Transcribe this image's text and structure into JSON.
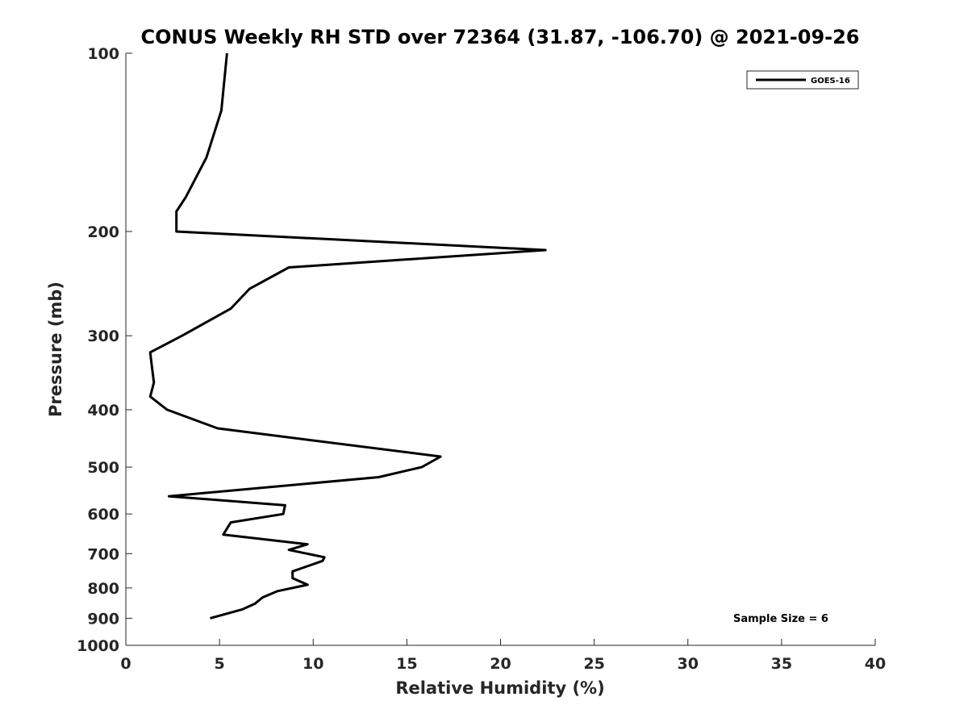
{
  "chart_data": {
    "type": "line",
    "title": "CONUS Weekly RH STD over 72364 (31.87, -106.70) @ 2021-09-26",
    "xlabel": "Relative Humidity (%)",
    "ylabel": "Pressure (mb)",
    "xlim": [
      0,
      40
    ],
    "ylim": [
      100,
      1000
    ],
    "y_scale": "log",
    "y_direction": "reversed",
    "x_ticks": [
      "0",
      "5",
      "10",
      "15",
      "20",
      "25",
      "30",
      "35",
      "40"
    ],
    "y_ticks": [
      "100",
      "200",
      "300",
      "400",
      "500",
      "600",
      "700",
      "800",
      "900",
      "1000"
    ],
    "grid": false,
    "legend_position": "top-right",
    "series": [
      {
        "name": "GOES-16",
        "color": "#000000",
        "points": [
          {
            "x": 5.4,
            "y": 100
          },
          {
            "x": 5.1,
            "y": 125
          },
          {
            "x": 4.3,
            "y": 150
          },
          {
            "x": 3.2,
            "y": 175
          },
          {
            "x": 2.7,
            "y": 185
          },
          {
            "x": 2.7,
            "y": 200
          },
          {
            "x": 22.4,
            "y": 215
          },
          {
            "x": 8.7,
            "y": 230
          },
          {
            "x": 6.6,
            "y": 250
          },
          {
            "x": 5.6,
            "y": 270
          },
          {
            "x": 3.0,
            "y": 300
          },
          {
            "x": 1.3,
            "y": 320
          },
          {
            "x": 1.4,
            "y": 340
          },
          {
            "x": 1.5,
            "y": 360
          },
          {
            "x": 1.3,
            "y": 380
          },
          {
            "x": 2.2,
            "y": 400
          },
          {
            "x": 4.9,
            "y": 430
          },
          {
            "x": 16.8,
            "y": 480
          },
          {
            "x": 15.8,
            "y": 500
          },
          {
            "x": 13.5,
            "y": 520
          },
          {
            "x": 2.3,
            "y": 560
          },
          {
            "x": 8.5,
            "y": 580
          },
          {
            "x": 8.4,
            "y": 600
          },
          {
            "x": 5.6,
            "y": 620
          },
          {
            "x": 5.2,
            "y": 650
          },
          {
            "x": 9.7,
            "y": 675
          },
          {
            "x": 8.7,
            "y": 690
          },
          {
            "x": 10.6,
            "y": 710
          },
          {
            "x": 10.5,
            "y": 720
          },
          {
            "x": 8.9,
            "y": 750
          },
          {
            "x": 8.9,
            "y": 770
          },
          {
            "x": 9.7,
            "y": 790
          },
          {
            "x": 8.1,
            "y": 810
          },
          {
            "x": 7.3,
            "y": 830
          },
          {
            "x": 6.9,
            "y": 850
          },
          {
            "x": 6.2,
            "y": 870
          },
          {
            "x": 4.5,
            "y": 900
          }
        ]
      }
    ],
    "annotations": [
      {
        "text": "Sample Size = 6"
      }
    ]
  }
}
